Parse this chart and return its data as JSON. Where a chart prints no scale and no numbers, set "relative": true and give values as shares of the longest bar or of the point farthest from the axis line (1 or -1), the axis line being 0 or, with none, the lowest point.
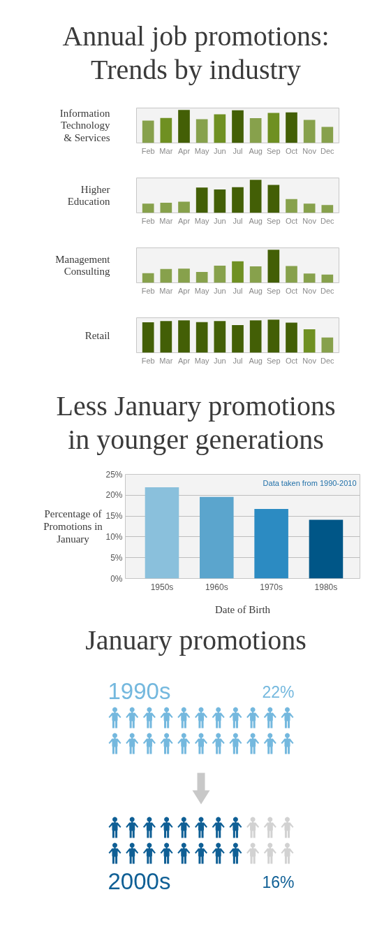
{
  "chart_data": [
    {
      "type": "bar",
      "title": "Annual job promotions: Trends by industry",
      "ylabel": "Information Technology & Services",
      "categories": [
        "Feb",
        "Mar",
        "Apr",
        "May",
        "Jun",
        "Jul",
        "Aug",
        "Sep",
        "Oct",
        "Nov",
        "Dec"
      ],
      "values": [
        0.68,
        0.76,
        1,
        0.72,
        0.87,
        0.99,
        0.75,
        0.91,
        0.93,
        0.7,
        0.49
      ],
      "colors": [
        "#87a14c",
        "#6f9022",
        "#435f06",
        "#87a14c",
        "#6f9022",
        "#435f06",
        "#87a14c",
        "#6f9022",
        "#435f06",
        "#87a14c",
        "#87a14c"
      ],
      "relative": true
    },
    {
      "type": "bar",
      "ylabel": "Higher Education",
      "categories": [
        "Feb",
        "Mar",
        "Apr",
        "May",
        "Jun",
        "Jul",
        "Aug",
        "Sep",
        "Oct",
        "Nov",
        "Dec"
      ],
      "values": [
        0.28,
        0.31,
        0.34,
        0.77,
        0.71,
        0.78,
        1,
        0.85,
        0.42,
        0.28,
        0.24
      ],
      "colors": [
        "#87a14c",
        "#87a14c",
        "#87a14c",
        "#435f06",
        "#435f06",
        "#435f06",
        "#435f06",
        "#435f06",
        "#87a14c",
        "#87a14c",
        "#87a14c"
      ],
      "relative": true
    },
    {
      "type": "bar",
      "ylabel": "Management Consulting",
      "categories": [
        "Feb",
        "Mar",
        "Apr",
        "May",
        "Jun",
        "Jul",
        "Aug",
        "Sep",
        "Oct",
        "Nov",
        "Dec"
      ],
      "values": [
        0.29,
        0.42,
        0.43,
        0.33,
        0.52,
        0.65,
        0.5,
        1,
        0.51,
        0.28,
        0.25
      ],
      "colors": [
        "#87a14c",
        "#87a14c",
        "#87a14c",
        "#87a14c",
        "#87a14c",
        "#6f9022",
        "#87a14c",
        "#435f06",
        "#87a14c",
        "#87a14c",
        "#87a14c"
      ],
      "relative": true
    },
    {
      "type": "bar",
      "ylabel": "Retail",
      "categories": [
        "Feb",
        "Mar",
        "Apr",
        "May",
        "Jun",
        "Jul",
        "Aug",
        "Sep",
        "Oct",
        "Nov",
        "Dec"
      ],
      "values": [
        0.92,
        0.96,
        0.98,
        0.93,
        0.96,
        0.84,
        0.98,
        1,
        0.91,
        0.71,
        0.46
      ],
      "colors": [
        "#435f06",
        "#435f06",
        "#435f06",
        "#435f06",
        "#435f06",
        "#435f06",
        "#435f06",
        "#435f06",
        "#435f06",
        "#6f9022",
        "#87a14c"
      ],
      "relative": true
    },
    {
      "type": "bar",
      "title": "Less January promotions in younger generations",
      "ylabel": "Percentage of Promotions in January",
      "xlabel": "Date of Birth",
      "categories": [
        "1950s",
        "1960s",
        "1970s",
        "1980s"
      ],
      "values": [
        21.9,
        19.6,
        16.7,
        14.1
      ],
      "colors": [
        "#8ac0dc",
        "#5ba5cd",
        "#2c8bc2",
        "#005687"
      ],
      "ylim": [
        0,
        25
      ],
      "yticks": [
        {
          "value": 0,
          "label": "0%"
        },
        {
          "value": 5,
          "label": "5%"
        },
        {
          "value": 10,
          "label": "10%"
        },
        {
          "value": 15,
          "label": "15%"
        },
        {
          "value": 20,
          "label": "20%"
        },
        {
          "value": 25,
          "label": "25%"
        }
      ],
      "grid": "y",
      "annotations": [
        "Data taken from 1990-2010"
      ]
    },
    {
      "type": "other",
      "title": "January promotions",
      "categories": [
        "1990s",
        "2000s"
      ],
      "values": [
        22,
        16
      ],
      "colors": [
        "#74b8de",
        "#0f5f95"
      ],
      "value_labels": [
        "22%",
        "16%"
      ]
    }
  ]
}
